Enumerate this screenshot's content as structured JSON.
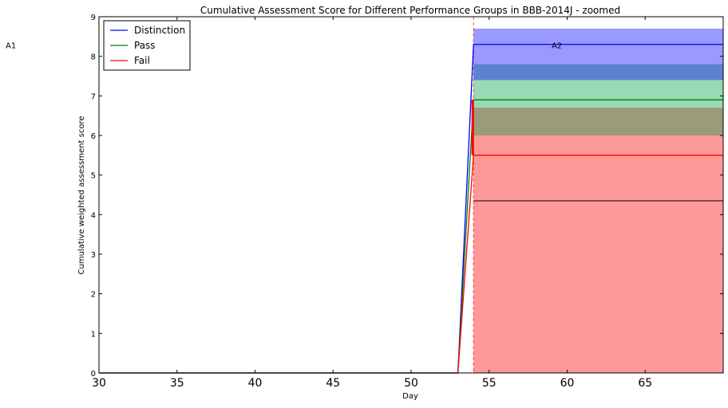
{
  "chart_data": {
    "type": "line",
    "title": "Cumulative Assessment Score for Different Performance Groups in BBB-2014J - zoomed",
    "xlabel": "Day",
    "ylabel": "Cumulative weighted assessment score",
    "xlim": [
      30,
      70
    ],
    "ylim": [
      0,
      9
    ],
    "x_ticks": [
      30,
      35,
      40,
      45,
      50,
      55,
      60,
      65
    ],
    "y_ticks": [
      0,
      1,
      2,
      3,
      4,
      5,
      6,
      7,
      8,
      9
    ],
    "grid": false,
    "legend_position": "top-left",
    "series": [
      {
        "name": "Distinction",
        "color": "#0000ff",
        "x": [
          30,
          53,
          54,
          70
        ],
        "y": [
          0,
          0,
          8.3,
          8.3
        ],
        "band": {
          "x": [
            54,
            70
          ],
          "lower": 7.4,
          "upper": 8.7,
          "fill": "#0000ff",
          "opacity": 0.4
        }
      },
      {
        "name": "Pass",
        "color": "#008000",
        "x": [
          30,
          53,
          54,
          70
        ],
        "y": [
          0,
          0,
          6.9,
          6.9
        ],
        "band": {
          "x": [
            54,
            70
          ],
          "lower": 6.0,
          "upper": 7.8,
          "fill": "#00a040",
          "opacity": 0.4
        }
      },
      {
        "name": "Fail",
        "color": "#ff0000",
        "x": [
          30,
          53,
          54,
          70
        ],
        "y": [
          0,
          0,
          5.5,
          5.5
        ],
        "band": {
          "x": [
            54,
            70
          ],
          "lower": 0,
          "upper": 6.7,
          "fill": "#ff0000",
          "opacity": 0.4
        }
      }
    ],
    "extra_lines": [
      {
        "x": [
          54,
          70
        ],
        "y": [
          4.35,
          4.35
        ],
        "color": "#000000"
      }
    ],
    "vertical_markers": [
      {
        "x": 54,
        "style": "dashed",
        "color": "#ff0000"
      }
    ],
    "annotations": [
      {
        "text": "A1",
        "x": 30,
        "y": 8.2,
        "anchor": "outside-left"
      },
      {
        "text": "A2",
        "x": 59,
        "y": 8.2
      }
    ]
  }
}
